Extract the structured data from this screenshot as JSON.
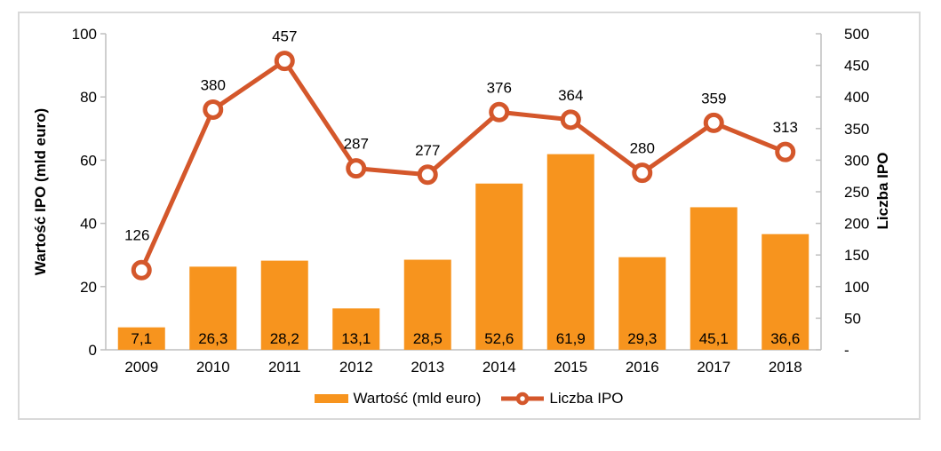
{
  "chart_data": {
    "type": "combo",
    "categories": [
      "2009",
      "2010",
      "2011",
      "2012",
      "2013",
      "2014",
      "2015",
      "2016",
      "2017",
      "2018"
    ],
    "series": [
      {
        "name": "Wartość (mld euro)",
        "type": "bar",
        "axis": "left",
        "values": [
          7.1,
          26.3,
          28.2,
          13.1,
          28.5,
          52.6,
          61.9,
          29.3,
          45.1,
          36.6
        ],
        "labels": [
          "7,1",
          "26,3",
          "28,2",
          "13,1",
          "28,5",
          "52,6",
          "61,9",
          "29,3",
          "45,1",
          "36,6"
        ]
      },
      {
        "name": "Liczba IPO",
        "type": "line",
        "axis": "right",
        "values": [
          126,
          380,
          457,
          287,
          277,
          376,
          364,
          280,
          359,
          313
        ],
        "labels": [
          "126",
          "380",
          "457",
          "287",
          "277",
          "376",
          "364",
          "280",
          "359",
          "313"
        ]
      }
    ],
    "left_axis": {
      "title": "Wartość IPO (mld euro)",
      "min": 0,
      "max": 100,
      "step": 20,
      "tick_labels": [
        "0",
        "20",
        "40",
        "60",
        "80",
        "100"
      ]
    },
    "right_axis": {
      "title": "Liczba IPO",
      "min": 0,
      "max": 500,
      "step": 50,
      "tick_labels": [
        "-",
        "50",
        "100",
        "150",
        "200",
        "250",
        "300",
        "350",
        "400",
        "450",
        "500"
      ]
    },
    "legend": {
      "position": "bottom",
      "items": [
        {
          "label": "Wartość (mld euro)",
          "swatch": "bar"
        },
        {
          "label": "Liczba IPO",
          "swatch": "line-marker"
        }
      ]
    },
    "grid": false,
    "colors": {
      "bar": "#F7941E",
      "line": "#D4572B",
      "marker_fill": "#FFFFFF",
      "axis_line": "#BFBFBF",
      "frame_border": "#D9D9D9",
      "text": "#000000",
      "background": "#FFFFFF"
    }
  }
}
